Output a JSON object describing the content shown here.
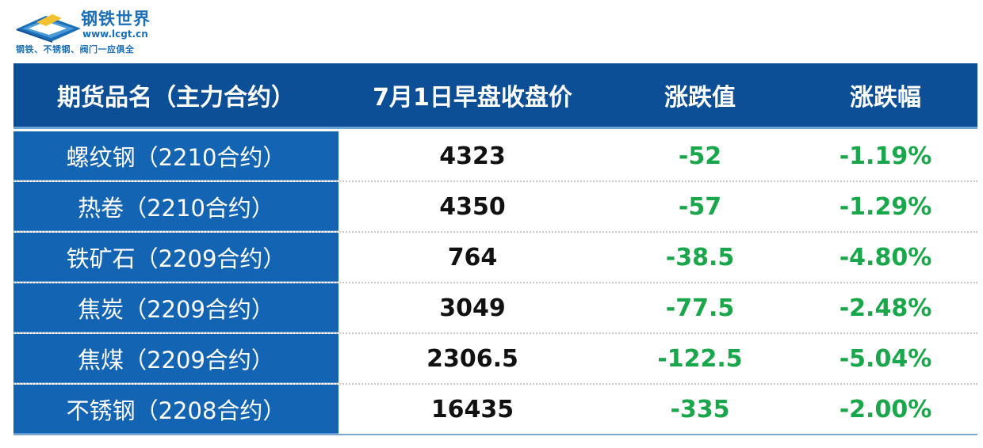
{
  "logo": {
    "title": "钢铁世界",
    "url": "www.lcgt.cn",
    "slogan": "钢铁、不锈钢、阀门一应俱全"
  },
  "table": {
    "headers": [
      "期货品名（主力合约）",
      "7月1日早盘收盘价",
      "涨跌值",
      "涨跌幅"
    ],
    "rows": [
      {
        "name": "螺纹钢（2210合约）",
        "price": "4323",
        "change": "-52",
        "pct": "-1.19%"
      },
      {
        "name": "热卷（2210合约）",
        "price": "4350",
        "change": "-57",
        "pct": "-1.29%"
      },
      {
        "name": "铁矿石（2209合约）",
        "price": "764",
        "change": "-38.5",
        "pct": "-4.80%"
      },
      {
        "name": "焦炭（2209合约）",
        "price": "3049",
        "change": "-77.5",
        "pct": "-2.48%"
      },
      {
        "name": "焦煤（2209合约）",
        "price": "2306.5",
        "change": "-122.5",
        "pct": "-5.04%"
      },
      {
        "name": "不锈钢（2208合约）",
        "price": "16435",
        "change": "-335",
        "pct": "-2.00%"
      }
    ]
  },
  "colors": {
    "header_bg": "#0d4f96",
    "name_cell_bg": "#1464b4",
    "negative_green": "#1aa64a"
  }
}
